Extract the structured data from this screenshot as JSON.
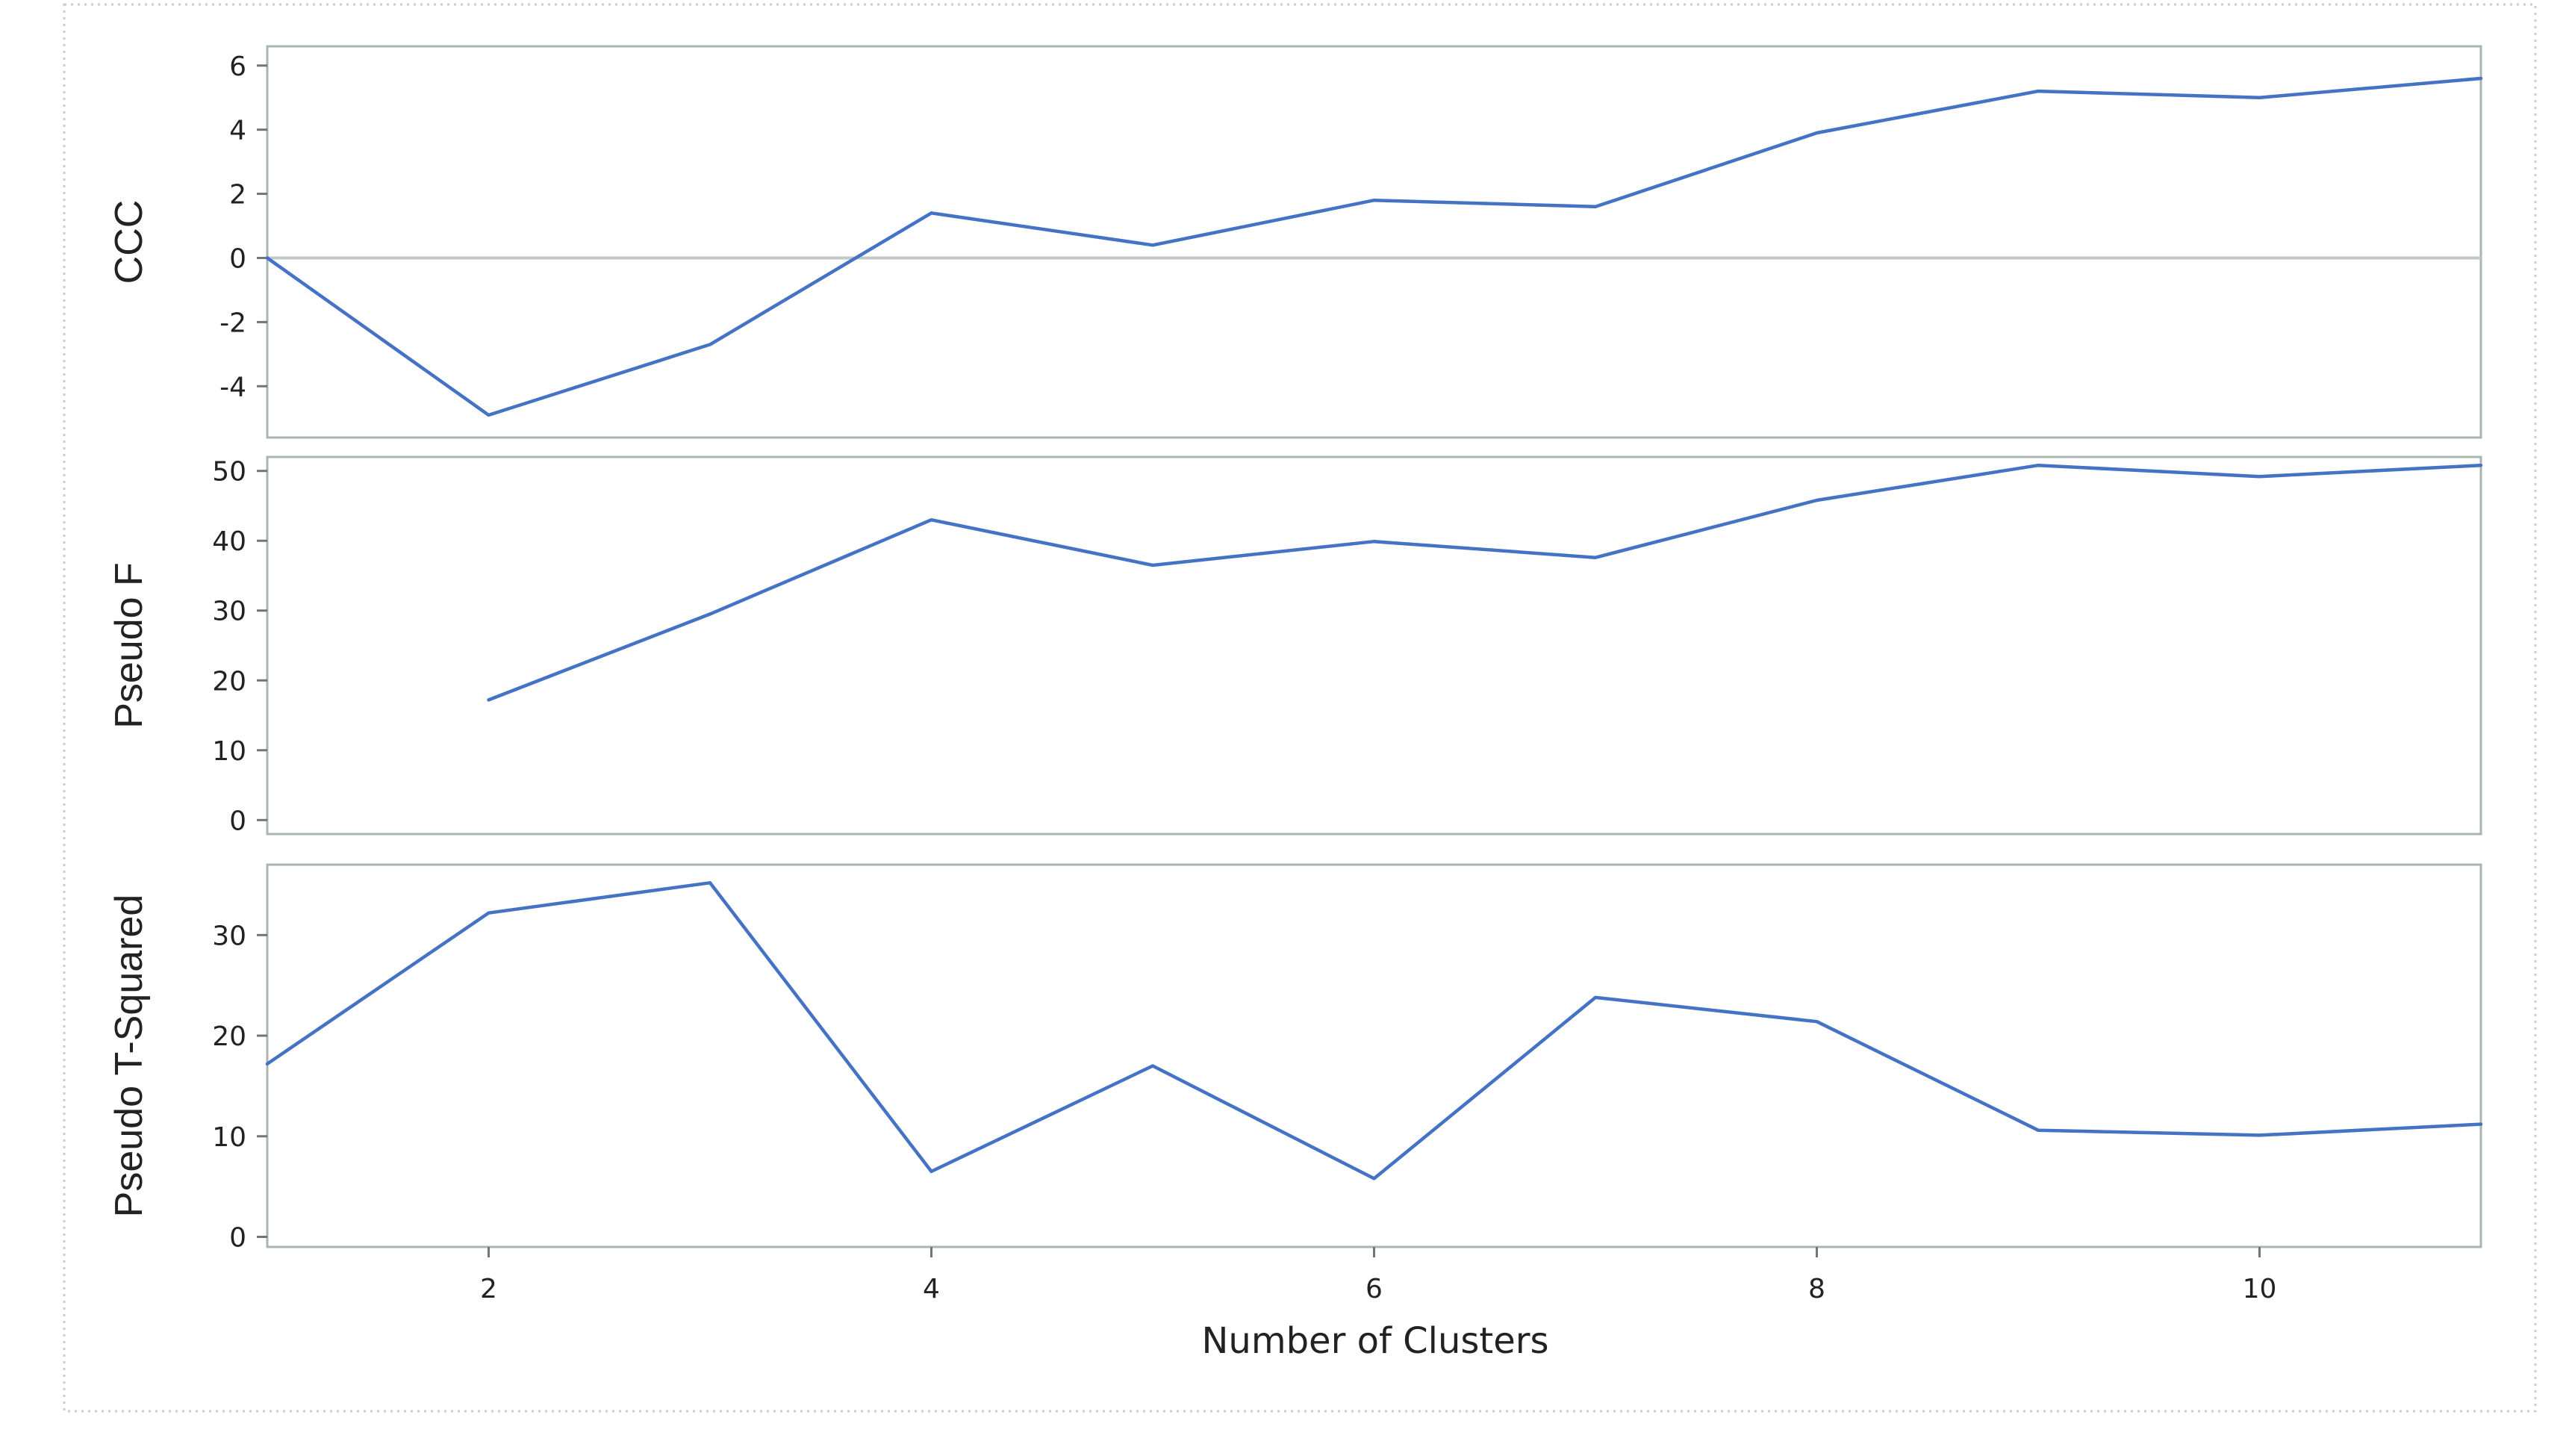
{
  "chart_data": {
    "type": "line",
    "layout": "stacked-panels-shared-x",
    "xlabel": "Number of Clusters",
    "x": [
      1,
      2,
      3,
      4,
      5,
      6,
      7,
      8,
      9,
      10,
      11
    ],
    "xlim": [
      1,
      11
    ],
    "x_ticks": [
      2,
      4,
      6,
      8,
      10
    ],
    "line_color": "#4472c4",
    "panels": [
      {
        "ylabel": "CCC",
        "ylim": [
          -5.6,
          6.6
        ],
        "y_ticks": [
          6,
          4,
          2,
          0,
          -2,
          -4
        ],
        "reference_line_y": 0,
        "values": [
          0,
          -4.9,
          -2.7,
          1.4,
          0.4,
          1.8,
          1.6,
          3.9,
          5.2,
          5.0,
          5.6
        ]
      },
      {
        "ylabel": "Pseudo F",
        "ylim": [
          -2,
          52
        ],
        "y_ticks": [
          50,
          40,
          30,
          20,
          10,
          0
        ],
        "values": [
          null,
          17.2,
          29.5,
          43.0,
          36.5,
          39.9,
          37.6,
          45.8,
          50.8,
          49.2,
          50.8
        ]
      },
      {
        "ylabel": "Pseudo T-Squared",
        "ylim": [
          -1,
          37
        ],
        "y_ticks": [
          30,
          20,
          10,
          0
        ],
        "values": [
          17.2,
          32.2,
          35.2,
          6.5,
          17.0,
          5.8,
          23.8,
          21.4,
          10.6,
          10.1,
          11.2
        ]
      }
    ]
  }
}
